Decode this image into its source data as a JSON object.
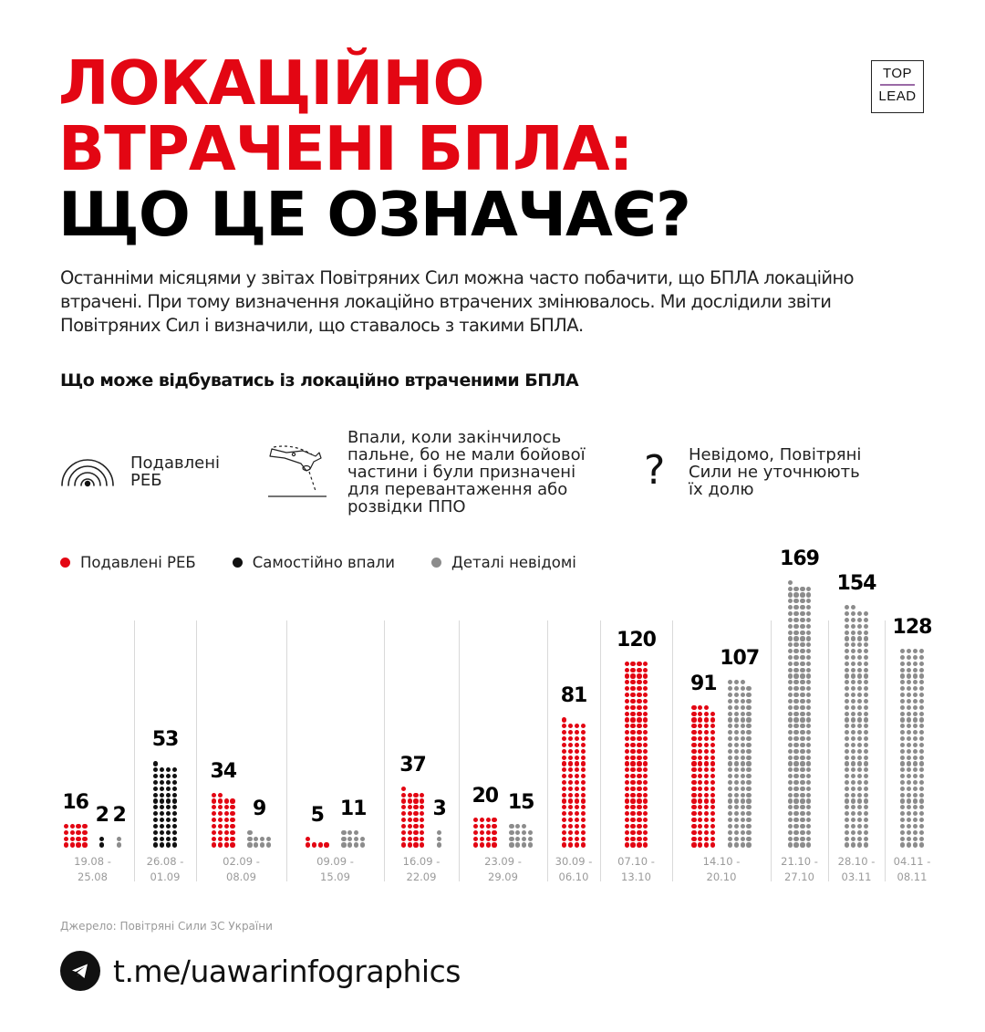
{
  "header": {
    "title_lines": [
      "ЛОКАЦІЙНО",
      "ВТРАЧЕНІ БПЛА:",
      "ЩО ЦЕ ОЗНАЧАЄ?"
    ],
    "logo_top": "TOP",
    "logo_bottom": "LEAD"
  },
  "intro": "Останніми місяцями у звітах Повітряних Сил можна часто побачити, що БПЛА локаційно втрачені. При тому визначення локаційно втрачених змінювалось. Ми дослідили звіти Повітряних Сил і визначили, що ставалось з такими БПЛА.",
  "subhead": "Що може відбуватись із локаційно втраченими БПЛА",
  "categories": [
    {
      "icon": "signal-jammed-icon",
      "text": "Подавлені\nРЕБ"
    },
    {
      "icon": "falling-drone-icon",
      "text": "Впали, коли закінчилось\nпальне, бо не мали бойової\nчастини і були призначені\nдля перевантаження або\nрозвідки ППО"
    },
    {
      "icon": "question-mark-icon",
      "text": "Невідомо, Повітряні\nСили не уточнюють\nїх долю"
    }
  ],
  "colors": {
    "red": "#e30613",
    "black": "#111111",
    "gray": "#8c8c8c"
  },
  "chart_data": {
    "type": "bar",
    "title": "Що може відбуватись із локаційно втраченими БПЛА",
    "subtype": "dot-matrix (1 dot = 1 UAV, 4 dots per row)",
    "xlabel": "",
    "ylabel": "",
    "legend": {
      "placement": "top-left",
      "entries": [
        {
          "name": "Подавлені РЕБ",
          "color": "#e30613"
        },
        {
          "name": "Самостійно впали",
          "color": "#111111"
        },
        {
          "name": "Деталі невідомі",
          "color": "#8c8c8c"
        }
      ]
    },
    "categories": [
      "19.08 - 25.08",
      "26.08 - 01.09",
      "02.09 - 08.09",
      "09.09 - 15.09",
      "16.09 - 22.09",
      "23.09 - 29.09",
      "30.09 - 06.10",
      "07.10 - 13.10",
      "14.10 - 20.10",
      "21.10 - 27.10",
      "28.10 - 03.11",
      "04.11 - 08.11"
    ],
    "series": [
      {
        "name": "Подавлені РЕБ",
        "color": "#e30613",
        "values": [
          16,
          null,
          34,
          5,
          37,
          20,
          81,
          120,
          91,
          null,
          null,
          null
        ]
      },
      {
        "name": "Самостійно впали",
        "color": "#111111",
        "values": [
          2,
          53,
          null,
          null,
          null,
          null,
          null,
          null,
          null,
          null,
          null,
          null
        ]
      },
      {
        "name": "Деталі невідомі",
        "color": "#8c8c8c",
        "values": [
          2,
          null,
          9,
          11,
          3,
          15,
          null,
          null,
          107,
          169,
          154,
          128
        ]
      }
    ]
  },
  "footer": {
    "source": "Джерело: Повітряні Сили ЗС України",
    "link": "t.me/uawarinfographics"
  }
}
